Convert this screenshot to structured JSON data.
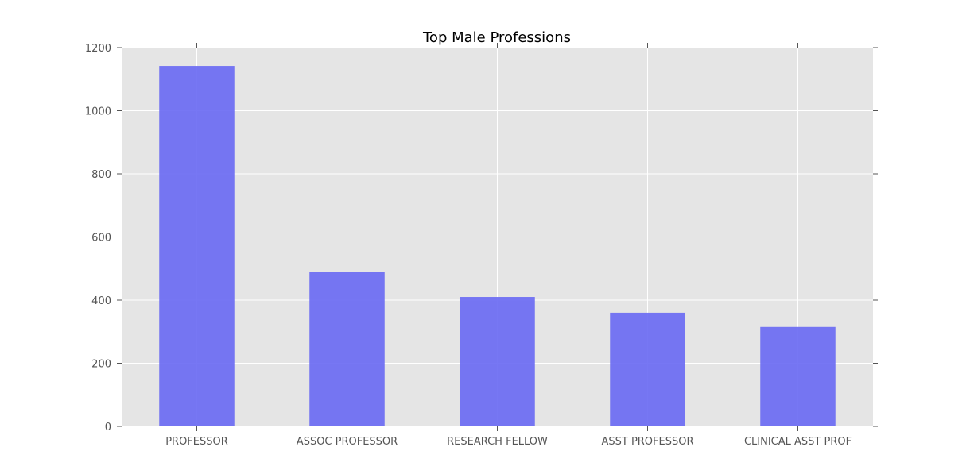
{
  "chart_data": {
    "type": "bar",
    "title": "Top Male Professions",
    "categories": [
      "PROFESSOR",
      "ASSOC PROFESSOR",
      "RESEARCH FELLOW",
      "ASST PROFESSOR",
      "CLINICAL ASST PROF"
    ],
    "values": [
      1142,
      490,
      410,
      360,
      315
    ],
    "xlabel": "",
    "ylabel": "",
    "ylim": [
      0,
      1200
    ],
    "yticks": [
      0,
      200,
      400,
      600,
      800,
      1000,
      1200
    ],
    "grid": true,
    "legend": "none",
    "colors": {
      "bar": "#6b6bf3",
      "plot_background": "#e5e5e5",
      "grid": "#ffffff"
    }
  }
}
